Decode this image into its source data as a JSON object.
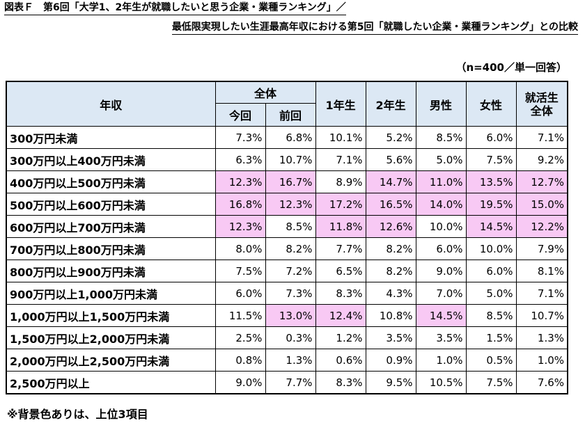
{
  "title_line1": "図表Ｆ　第6回「大学1、2年生が就職したいと思う企業・業種ランキング」／",
  "title_line2": "最低限実現したい生涯最高年収における第5回「就職したい企業・業種ランキング」との比較",
  "sample_note": "（n=400／単一回答）",
  "headers": {
    "income": "年収",
    "all": "全体",
    "current": "今回",
    "previous": "前回",
    "year1": "1年生",
    "year2": "2年生",
    "male": "男性",
    "female": "女性",
    "jobhunt_line1": "就活生",
    "jobhunt_line2": "全体"
  },
  "rows": [
    {
      "label": "300万円未満",
      "values": [
        "7.3%",
        "6.8%",
        "10.1%",
        "5.2%",
        "8.5%",
        "6.0%",
        "7.1%"
      ],
      "highlight": [
        false,
        false,
        false,
        false,
        false,
        false,
        false
      ]
    },
    {
      "label": "300万円以上400万円未満",
      "values": [
        "6.3%",
        "10.7%",
        "7.1%",
        "5.6%",
        "5.0%",
        "7.5%",
        "9.2%"
      ],
      "highlight": [
        false,
        false,
        false,
        false,
        false,
        false,
        false
      ]
    },
    {
      "label": "400万円以上500万円未満",
      "values": [
        "12.3%",
        "16.7%",
        "8.9%",
        "14.7%",
        "11.0%",
        "13.5%",
        "12.7%"
      ],
      "highlight": [
        true,
        true,
        false,
        true,
        true,
        true,
        true
      ]
    },
    {
      "label": "500万円以上600万円未満",
      "values": [
        "16.8%",
        "12.3%",
        "17.2%",
        "16.5%",
        "14.0%",
        "19.5%",
        "15.0%"
      ],
      "highlight": [
        true,
        true,
        true,
        true,
        true,
        true,
        true
      ]
    },
    {
      "label": "600万円以上700万円未満",
      "values": [
        "12.3%",
        "8.5%",
        "11.8%",
        "12.6%",
        "10.0%",
        "14.5%",
        "12.2%"
      ],
      "highlight": [
        true,
        false,
        true,
        true,
        false,
        true,
        true
      ]
    },
    {
      "label": "700万円以上800万円未満",
      "values": [
        "8.0%",
        "8.2%",
        "7.7%",
        "8.2%",
        "6.0%",
        "10.0%",
        "7.9%"
      ],
      "highlight": [
        false,
        false,
        false,
        false,
        false,
        false,
        false
      ]
    },
    {
      "label": "800万円以上900万円未満",
      "values": [
        "7.5%",
        "7.2%",
        "6.5%",
        "8.2%",
        "9.0%",
        "6.0%",
        "8.1%"
      ],
      "highlight": [
        false,
        false,
        false,
        false,
        false,
        false,
        false
      ]
    },
    {
      "label": "900万円以上1,000万円未満",
      "values": [
        "6.0%",
        "7.3%",
        "8.3%",
        "4.3%",
        "7.0%",
        "5.0%",
        "7.1%"
      ],
      "highlight": [
        false,
        false,
        false,
        false,
        false,
        false,
        false
      ]
    },
    {
      "label": "1,000万円以上1,500万円未満",
      "values": [
        "11.5%",
        "13.0%",
        "12.4%",
        "10.8%",
        "14.5%",
        "8.5%",
        "10.7%"
      ],
      "highlight": [
        false,
        true,
        true,
        false,
        true,
        false,
        false
      ]
    },
    {
      "label": "1,500万円以上2,000万円未満",
      "values": [
        "2.5%",
        "0.3%",
        "1.2%",
        "3.5%",
        "3.5%",
        "1.5%",
        "1.3%"
      ],
      "highlight": [
        false,
        false,
        false,
        false,
        false,
        false,
        false
      ]
    },
    {
      "label": "2,000万円以上2,500万円未満",
      "values": [
        "0.8%",
        "1.3%",
        "0.6%",
        "0.9%",
        "1.0%",
        "0.5%",
        "1.0%"
      ],
      "highlight": [
        false,
        false,
        false,
        false,
        false,
        false,
        false
      ]
    },
    {
      "label": "2,500万円以上",
      "values": [
        "9.0%",
        "7.7%",
        "8.3%",
        "9.5%",
        "10.5%",
        "7.5%",
        "7.6%"
      ],
      "highlight": [
        false,
        false,
        false,
        false,
        false,
        false,
        false
      ]
    }
  ],
  "footnote": "※背景色ありは、上位3項目",
  "colors": {
    "header_bg": "#dce8f4",
    "highlight_bg": "#f8c9f4"
  }
}
